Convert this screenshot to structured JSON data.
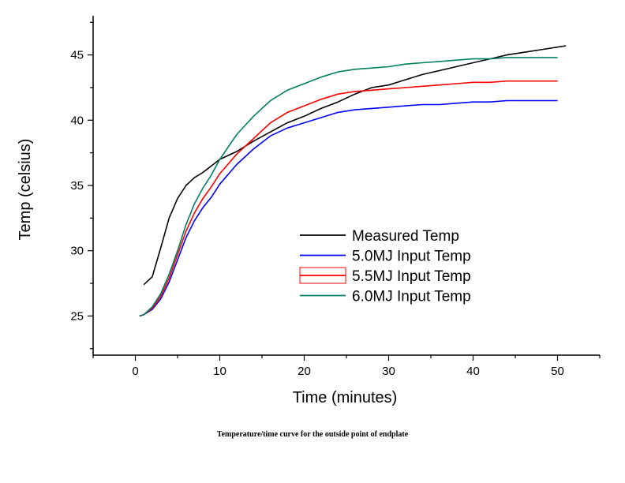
{
  "caption": "Temperature/time curve for the outside point of endplate",
  "chart_data": {
    "type": "line",
    "title": "",
    "xlabel": "Time (minutes)",
    "ylabel": "Temp (celsius)",
    "xlim": [
      -5,
      55
    ],
    "ylim": [
      22,
      48
    ],
    "xticks": [
      0,
      10,
      20,
      30,
      40,
      50
    ],
    "yticks": [
      25,
      30,
      35,
      40,
      45
    ],
    "grid": false,
    "legend_position": "bottom-right",
    "series": [
      {
        "name": "Measured Temp",
        "color": "#000000",
        "x": [
          1,
          2,
          3,
          4,
          5,
          6,
          7,
          8,
          9,
          10,
          12,
          14,
          16,
          18,
          20,
          22,
          24,
          26,
          28,
          30,
          32,
          34,
          36,
          38,
          40,
          42,
          44,
          46,
          48,
          50,
          51
        ],
        "y": [
          27.4,
          28.0,
          30.2,
          32.5,
          34.0,
          35.0,
          35.6,
          36.0,
          36.5,
          37.0,
          37.6,
          38.4,
          39.1,
          39.8,
          40.3,
          40.9,
          41.4,
          42.0,
          42.5,
          42.7,
          43.1,
          43.5,
          43.8,
          44.1,
          44.4,
          44.7,
          45.0,
          45.2,
          45.4,
          45.6,
          45.7
        ]
      },
      {
        "name": "5.0MJ Input Temp",
        "color": "#0000ff",
        "x": [
          0.5,
          1,
          2,
          3,
          4,
          5,
          6,
          7,
          8,
          9,
          10,
          12,
          14,
          16,
          18,
          20,
          22,
          24,
          26,
          28,
          30,
          32,
          34,
          36,
          38,
          40,
          42,
          44,
          46,
          48,
          50
        ],
        "y": [
          25.0,
          25.1,
          25.5,
          26.3,
          27.6,
          29.3,
          31.0,
          32.3,
          33.3,
          34.1,
          35.1,
          36.6,
          37.8,
          38.8,
          39.4,
          39.8,
          40.2,
          40.6,
          40.8,
          40.9,
          41.0,
          41.1,
          41.2,
          41.2,
          41.3,
          41.4,
          41.4,
          41.5,
          41.5,
          41.5,
          41.5
        ]
      },
      {
        "name": "5.5MJ Input Temp",
        "color": "#ff0000",
        "x": [
          0.5,
          1,
          2,
          3,
          4,
          5,
          6,
          7,
          8,
          9,
          10,
          12,
          14,
          16,
          18,
          20,
          22,
          24,
          26,
          28,
          30,
          32,
          34,
          36,
          38,
          40,
          42,
          44,
          46,
          48,
          50
        ],
        "y": [
          25.0,
          25.1,
          25.6,
          26.5,
          27.9,
          29.7,
          31.5,
          32.9,
          34.0,
          34.9,
          35.9,
          37.4,
          38.6,
          39.8,
          40.6,
          41.1,
          41.6,
          42.0,
          42.2,
          42.3,
          42.4,
          42.5,
          42.6,
          42.7,
          42.8,
          42.9,
          42.9,
          43.0,
          43.0,
          43.0,
          43.0
        ]
      },
      {
        "name": "6.0MJ Input Temp",
        "color": "#008060",
        "x": [
          0.5,
          1,
          2,
          3,
          4,
          5,
          6,
          7,
          8,
          9,
          10,
          12,
          14,
          16,
          18,
          20,
          22,
          24,
          26,
          28,
          30,
          32,
          34,
          36,
          38,
          40,
          42,
          44,
          46,
          48,
          50
        ],
        "y": [
          25.0,
          25.1,
          25.7,
          26.7,
          28.2,
          30.0,
          32.0,
          33.6,
          34.8,
          35.8,
          37.0,
          38.9,
          40.3,
          41.5,
          42.3,
          42.8,
          43.3,
          43.7,
          43.9,
          44.0,
          44.1,
          44.3,
          44.4,
          44.5,
          44.6,
          44.7,
          44.7,
          44.8,
          44.8,
          44.8,
          44.8
        ]
      }
    ]
  }
}
